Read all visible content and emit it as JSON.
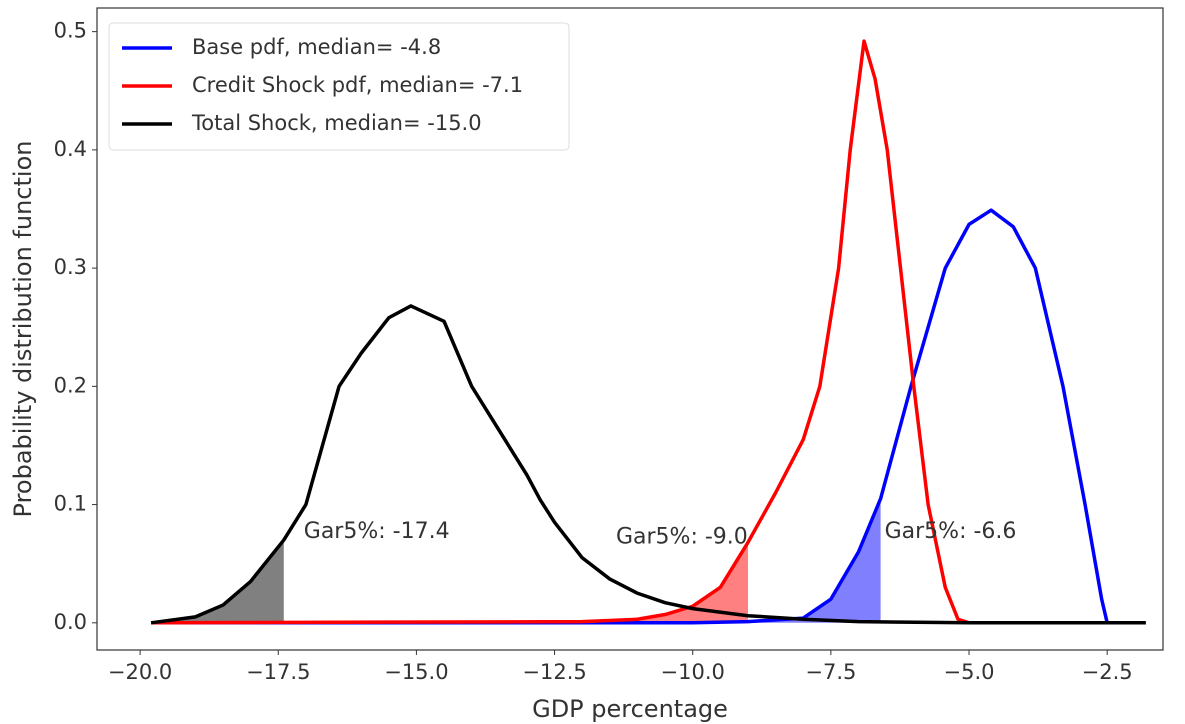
{
  "chart_data": {
    "type": "line",
    "x_label": "GDP percentage",
    "y_label": "Probability distribution function",
    "xlim": [
      -20.78,
      -1.49
    ],
    "ylim": [
      -0.023,
      0.52
    ],
    "xticks": [
      {
        "value": -20,
        "label": "−20.0"
      },
      {
        "value": -17.5,
        "label": "−17.5"
      },
      {
        "value": -15,
        "label": "−15.0"
      },
      {
        "value": -12.5,
        "label": "−12.5"
      },
      {
        "value": -10,
        "label": "−10.0"
      },
      {
        "value": -7.5,
        "label": "−7.5"
      },
      {
        "value": -5,
        "label": "−5.0"
      },
      {
        "value": -2.5,
        "label": "−2.5"
      }
    ],
    "yticks": [
      {
        "value": 0,
        "label": "0.0"
      },
      0.1,
      0.2,
      0.3,
      0.4,
      0.5
    ],
    "grid": false,
    "legend": "upper left",
    "series": [
      {
        "name": "Base pdf, median= -4.8",
        "color": "#0000ff",
        "fill": "#8080ff",
        "gar": -6.6,
        "gar_label": "Gar5%: -6.6",
        "x": [
          -19.8,
          -10,
          -9,
          -8,
          -7.5,
          -7,
          -6.6,
          -6.05,
          -5.43,
          -5,
          -4.6,
          -4.2,
          -3.8,
          -3.3,
          -2.9,
          -2.6,
          -2.5
        ],
        "values": [
          0,
          0,
          0.001,
          0.004,
          0.02,
          0.06,
          0.105,
          0.2,
          0.3,
          0.337,
          0.349,
          0.335,
          0.3,
          0.2,
          0.1,
          0.02,
          0
        ]
      },
      {
        "name": "Credit Shock pdf, median= -7.1",
        "color": "#ff0000",
        "fill": "#ff8080",
        "gar": -9.0,
        "gar_label": "Gar5%: -9.0",
        "x": [
          -19.8,
          -12,
          -11,
          -10.5,
          -10,
          -9.5,
          -9,
          -8.5,
          -8,
          -7.7,
          -7.36,
          -7.15,
          -6.9,
          -6.7,
          -6.48,
          -6.24,
          -6,
          -5.74,
          -5.43,
          -5.2,
          -5,
          -2
        ],
        "values": [
          0,
          0.001,
          0.003,
          0.007,
          0.014,
          0.03,
          0.068,
          0.11,
          0.155,
          0.2,
          0.3,
          0.4,
          0.492,
          0.46,
          0.4,
          0.3,
          0.2,
          0.1,
          0.03,
          0.003,
          0,
          0
        ]
      },
      {
        "name": "Total Shock, median= -15.0",
        "color": "#000000",
        "fill": "#808080",
        "gar": -17.4,
        "gar_label": "Gar5%: -17.4",
        "x": [
          -19.8,
          -19,
          -18.5,
          -18,
          -17.4,
          -17,
          -16.4,
          -16,
          -15.5,
          -15.1,
          -14.5,
          -14,
          -13,
          -12.76,
          -12.5,
          -12,
          -11.5,
          -11,
          -10.5,
          -10,
          -9,
          -8,
          -7,
          -5,
          -1.8
        ],
        "values": [
          0,
          0.005,
          0.015,
          0.035,
          0.07,
          0.1,
          0.2,
          0.228,
          0.258,
          0.268,
          0.255,
          0.2,
          0.125,
          0.104,
          0.085,
          0.055,
          0.037,
          0.025,
          0.017,
          0.012,
          0.006,
          0.003,
          0.001,
          0,
          0
        ]
      }
    ]
  }
}
